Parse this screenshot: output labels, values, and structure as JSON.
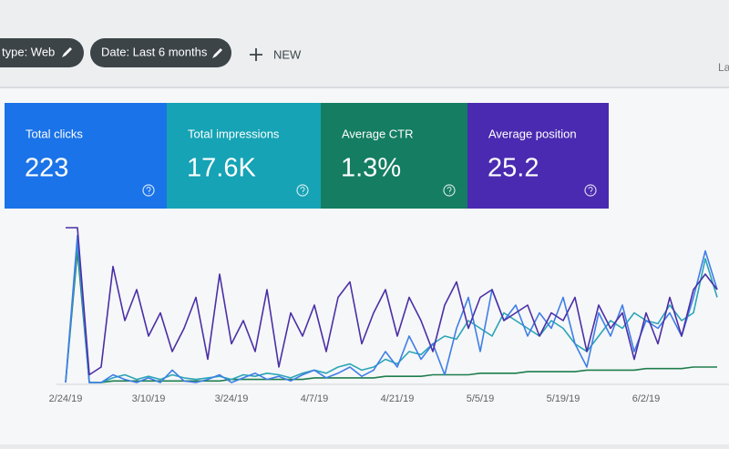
{
  "toolbar": {
    "filters": [
      {
        "label": "type: Web"
      },
      {
        "label": "Date: Last 6 months"
      }
    ],
    "new_button": "NEW",
    "corner_text": "La"
  },
  "metrics": [
    {
      "label": "Total clicks",
      "value": "223",
      "color": "#1a73e8"
    },
    {
      "label": "Total impressions",
      "value": "17.6K",
      "color": "#15a3b5"
    },
    {
      "label": "Average CTR",
      "value": "1.3%",
      "color": "#147d62"
    },
    {
      "label": "Average position",
      "value": "25.2",
      "color": "#4a2ab0"
    }
  ],
  "chart_data": {
    "type": "line",
    "categories": [
      "2/24/19",
      null,
      null,
      null,
      null,
      null,
      null,
      "3/10/19",
      null,
      null,
      null,
      null,
      null,
      null,
      "3/24/19",
      null,
      null,
      null,
      null,
      null,
      null,
      "4/7/19",
      null,
      null,
      null,
      null,
      null,
      null,
      "4/21/19",
      null,
      null,
      null,
      null,
      null,
      null,
      "5/5/19",
      null,
      null,
      null,
      null,
      null,
      null,
      "5/19/19",
      null,
      null,
      null,
      null,
      null,
      null,
      "6/2/19",
      null,
      null,
      null,
      null,
      null,
      null
    ],
    "ylim": [
      0,
      100
    ],
    "series": [
      {
        "color": "#1e7e4e",
        "values": [
          0,
          85,
          0,
          0,
          1,
          1,
          1,
          1,
          1,
          1,
          1,
          1,
          1,
          1,
          2,
          2,
          2,
          2,
          2,
          2,
          2,
          3,
          3,
          3,
          3,
          3,
          3,
          4,
          4,
          4,
          4,
          5,
          5,
          5,
          5,
          6,
          6,
          6,
          6,
          7,
          7,
          7,
          7,
          7,
          8,
          8,
          8,
          8,
          8,
          9,
          9,
          9,
          9,
          10,
          10,
          10
        ]
      },
      {
        "color": "#2aa5b8",
        "values": [
          0,
          90,
          0,
          0,
          3,
          5,
          2,
          4,
          2,
          5,
          3,
          2,
          3,
          4,
          2,
          5,
          4,
          6,
          5,
          3,
          6,
          8,
          6,
          10,
          12,
          8,
          10,
          15,
          12,
          20,
          18,
          25,
          30,
          28,
          40,
          35,
          30,
          45,
          40,
          35,
          30,
          40,
          35,
          25,
          20,
          30,
          40,
          35,
          45,
          40,
          38,
          50,
          40,
          45,
          80,
          55
        ]
      },
      {
        "color": "#3f7ee8",
        "values": [
          0,
          95,
          0,
          0,
          5,
          2,
          0,
          3,
          0,
          8,
          1,
          0,
          2,
          5,
          0,
          3,
          6,
          2,
          4,
          1,
          5,
          8,
          3,
          6,
          10,
          4,
          8,
          20,
          10,
          30,
          15,
          25,
          5,
          35,
          55,
          20,
          60,
          40,
          50,
          30,
          45,
          35,
          55,
          25,
          10,
          45,
          30,
          50,
          20,
          40,
          35,
          45,
          30,
          55,
          85,
          60
        ]
      },
      {
        "color": "#4b2fa6",
        "values": [
          100,
          100,
          5,
          10,
          75,
          40,
          60,
          30,
          45,
          20,
          35,
          55,
          15,
          70,
          25,
          40,
          20,
          60,
          10,
          45,
          30,
          50,
          20,
          55,
          65,
          25,
          45,
          60,
          30,
          55,
          40,
          20,
          50,
          65,
          35,
          55,
          60,
          40,
          45,
          50,
          30,
          45,
          40,
          55,
          20,
          50,
          35,
          45,
          15,
          45,
          25,
          55,
          30,
          60,
          70,
          60
        ]
      }
    ]
  }
}
